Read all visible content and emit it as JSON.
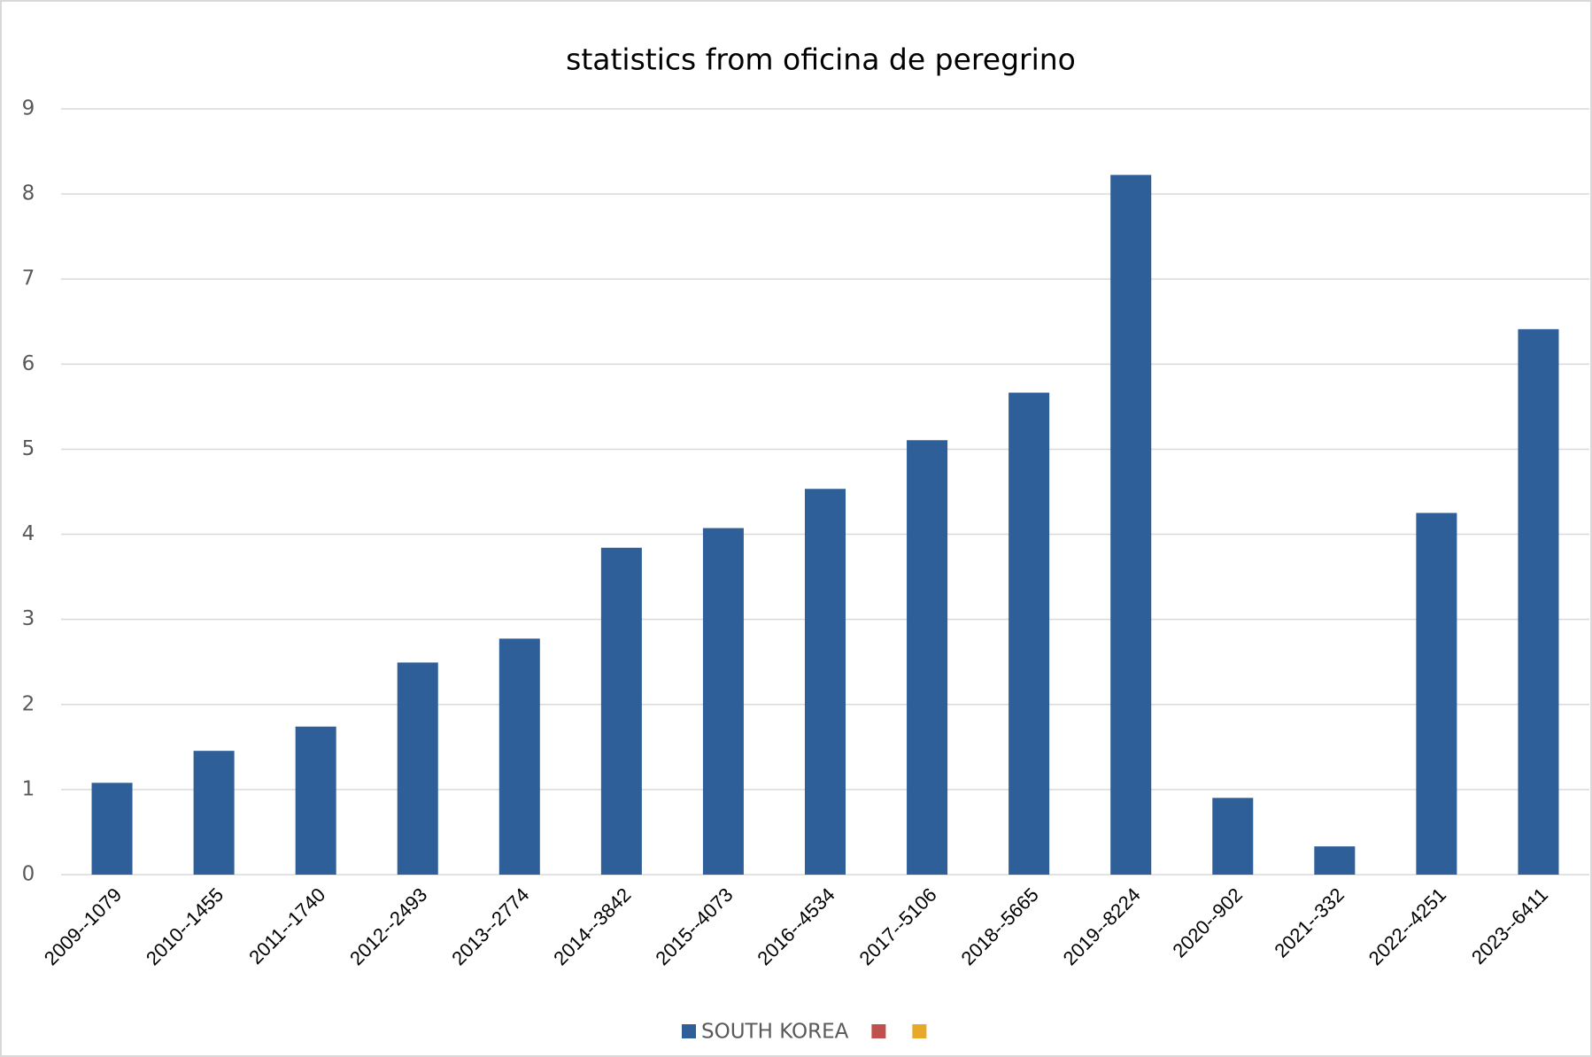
{
  "chart_data": {
    "type": "bar",
    "title": "statistics from oficina de peregrino",
    "categories": [
      "2009--1079",
      "2010--1455",
      "2011--1740",
      "2012--2493",
      "2013--2774",
      "2014--3842",
      "2015--4073",
      "2016--4534",
      "2017--5106",
      "2018--5665",
      "2019--8224",
      "2020--902",
      "2021--332",
      "2022--4251",
      "2023--6411"
    ],
    "series": [
      {
        "name": "SOUTH KOREA",
        "color": "#2f5f98",
        "values": [
          1.079,
          1.455,
          1.74,
          2.493,
          2.774,
          3.842,
          4.073,
          4.534,
          5.106,
          5.665,
          8.224,
          0.902,
          0.332,
          4.251,
          6.411
        ]
      },
      {
        "color": "#c0504d",
        "values": [
          null,
          null,
          null,
          null,
          null,
          null,
          null,
          null,
          null,
          null,
          null,
          null,
          null,
          null,
          null
        ]
      },
      {
        "color": "#e8a82a",
        "values": [
          null,
          null,
          null,
          null,
          null,
          null,
          null,
          null,
          null,
          null,
          null,
          null,
          null,
          null,
          null
        ]
      }
    ],
    "ylim": [
      0,
      9
    ],
    "yticks": [
      0,
      1,
      2,
      3,
      4,
      5,
      6,
      7,
      8,
      9
    ],
    "grid": true,
    "legend": "bottom"
  }
}
